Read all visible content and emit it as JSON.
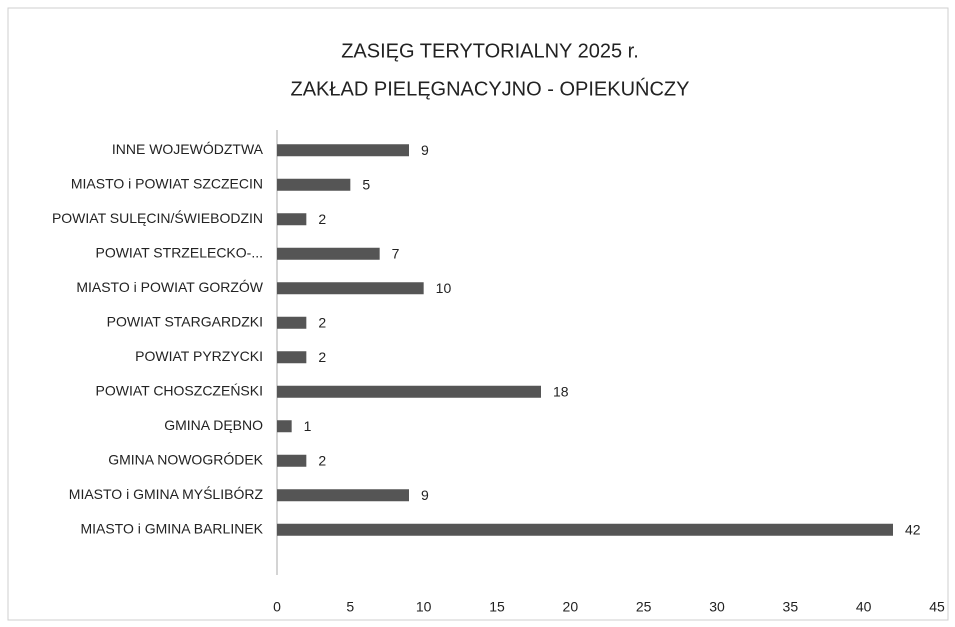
{
  "chart_data": {
    "type": "bar",
    "orientation": "horizontal",
    "title": [
      "ZASIĘG TERYTORIALNY 2025 r.",
      "ZAKŁAD PIELĘGNACYJNO - OPIEKUŃCZY"
    ],
    "categories": [
      "INNE WOJEWÓDZTWA",
      "MIASTO i POWIAT SZCZECIN",
      "POWIAT SULĘCIN/ŚWIEBODZIN",
      "POWIAT STRZELECKO-...",
      "MIASTO i POWIAT GORZÓW",
      "POWIAT STARGARDZKI",
      "POWIAT PYRZYCKI",
      "POWIAT CHOSZCZEŃSKI",
      "GMINA DĘBNO",
      "GMINA NOWOGRÓDEK",
      "MIASTO i GMINA MYŚLIBÓRZ",
      "MIASTO i GMINA BARLINEK"
    ],
    "values": [
      9,
      5,
      2,
      7,
      10,
      2,
      2,
      18,
      1,
      2,
      9,
      42
    ],
    "color": "#555555",
    "xlim": [
      0,
      45
    ],
    "xticks": [
      0,
      5,
      10,
      15,
      20,
      25,
      30,
      35,
      40,
      45
    ],
    "grid": false
  }
}
